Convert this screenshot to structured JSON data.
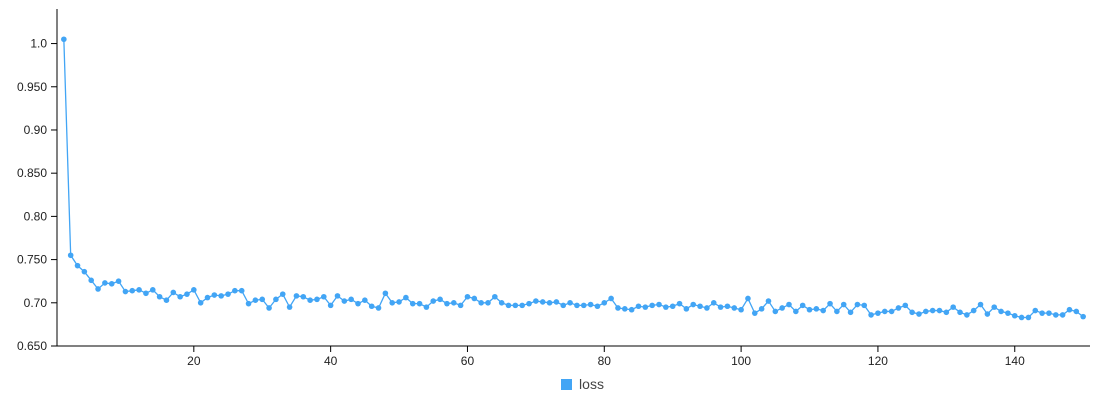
{
  "chart_data": {
    "type": "line",
    "title": "",
    "xlabel": "",
    "ylabel": "",
    "xlim": [
      0,
      151
    ],
    "ylim": [
      0.65,
      1.04
    ],
    "x_ticks": [
      20,
      40,
      60,
      80,
      100,
      120,
      140
    ],
    "x_tick_labels": [
      "20",
      "40",
      "60",
      "80",
      "100",
      "120",
      "140"
    ],
    "y_ticks": [
      0.65,
      0.7,
      0.75,
      0.8,
      0.85,
      0.9,
      0.95,
      1.0
    ],
    "y_tick_labels": [
      "0.650",
      "0.70",
      "0.750",
      "0.80",
      "0.850",
      "0.90",
      "0.950",
      "1.0"
    ],
    "grid": false,
    "legend_position": "bottom-center",
    "series": [
      {
        "name": "loss",
        "color": "#42a5f5",
        "x": [
          1,
          2,
          3,
          4,
          5,
          6,
          7,
          8,
          9,
          10,
          11,
          12,
          13,
          14,
          15,
          16,
          17,
          18,
          19,
          20,
          21,
          22,
          23,
          24,
          25,
          26,
          27,
          28,
          29,
          30,
          31,
          32,
          33,
          34,
          35,
          36,
          37,
          38,
          39,
          40,
          41,
          42,
          43,
          44,
          45,
          46,
          47,
          48,
          49,
          50,
          51,
          52,
          53,
          54,
          55,
          56,
          57,
          58,
          59,
          60,
          61,
          62,
          63,
          64,
          65,
          66,
          67,
          68,
          69,
          70,
          71,
          72,
          73,
          74,
          75,
          76,
          77,
          78,
          79,
          80,
          81,
          82,
          83,
          84,
          85,
          86,
          87,
          88,
          89,
          90,
          91,
          92,
          93,
          94,
          95,
          96,
          97,
          98,
          99,
          100,
          101,
          102,
          103,
          104,
          105,
          106,
          107,
          108,
          109,
          110,
          111,
          112,
          113,
          114,
          115,
          116,
          117,
          118,
          119,
          120,
          121,
          122,
          123,
          124,
          125,
          126,
          127,
          128,
          129,
          130,
          131,
          132,
          133,
          134,
          135,
          136,
          137,
          138,
          139,
          140,
          141,
          142,
          143,
          144,
          145,
          146,
          147,
          148,
          149,
          150
        ],
        "values": [
          1.005,
          0.755,
          0.743,
          0.736,
          0.726,
          0.716,
          0.723,
          0.722,
          0.725,
          0.713,
          0.714,
          0.715,
          0.711,
          0.715,
          0.707,
          0.703,
          0.712,
          0.707,
          0.71,
          0.715,
          0.7,
          0.706,
          0.709,
          0.708,
          0.71,
          0.714,
          0.714,
          0.699,
          0.703,
          0.704,
          0.694,
          0.704,
          0.71,
          0.695,
          0.708,
          0.707,
          0.703,
          0.704,
          0.707,
          0.697,
          0.708,
          0.702,
          0.704,
          0.699,
          0.703,
          0.696,
          0.694,
          0.711,
          0.7,
          0.701,
          0.706,
          0.699,
          0.699,
          0.695,
          0.702,
          0.704,
          0.699,
          0.7,
          0.697,
          0.707,
          0.705,
          0.7,
          0.7,
          0.707,
          0.7,
          0.697,
          0.697,
          0.697,
          0.699,
          0.702,
          0.701,
          0.7,
          0.701,
          0.697,
          0.7,
          0.697,
          0.697,
          0.698,
          0.696,
          0.7,
          0.705,
          0.694,
          0.693,
          0.692,
          0.696,
          0.695,
          0.697,
          0.698,
          0.695,
          0.696,
          0.699,
          0.693,
          0.698,
          0.696,
          0.694,
          0.7,
          0.695,
          0.696,
          0.694,
          0.692,
          0.705,
          0.688,
          0.693,
          0.702,
          0.69,
          0.694,
          0.698,
          0.69,
          0.697,
          0.692,
          0.693,
          0.691,
          0.699,
          0.69,
          0.698,
          0.689,
          0.698,
          0.697,
          0.686,
          0.688,
          0.69,
          0.69,
          0.694,
          0.697,
          0.689,
          0.687,
          0.69,
          0.691,
          0.691,
          0.689,
          0.695,
          0.689,
          0.686,
          0.691,
          0.698,
          0.687,
          0.695,
          0.69,
          0.688,
          0.685,
          0.683,
          0.683,
          0.691,
          0.688,
          0.688,
          0.686,
          0.686,
          0.692,
          0.69,
          0.684
        ]
      }
    ]
  }
}
